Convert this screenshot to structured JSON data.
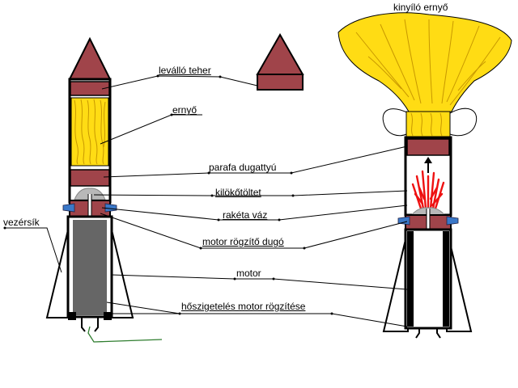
{
  "labels": {
    "deploying_chute": "kinyíló ernyő",
    "nose_cone": "leválló teher",
    "parachute": "ernyő",
    "cork_piston": "parafa dugattyú",
    "ejection_charge": "kilökőtöltet",
    "rocket_body": "rakéta váz",
    "fins": "vezérsík",
    "motor_plug": "motor rögzítő dugó",
    "motor": "motor",
    "insulation": "hőszigetelés motor rögzítése"
  },
  "colors": {
    "cone_and_pistons": "#a0444a",
    "parachute": "#ffdc14",
    "parachute_lines": "#d4a000",
    "motor": "#666666",
    "ejection_gas": "#ee1111",
    "fin_connector": "#3a78c8",
    "fuse_wire": "#2e7d2e"
  },
  "icons": [
    "up-arrow-icon"
  ]
}
